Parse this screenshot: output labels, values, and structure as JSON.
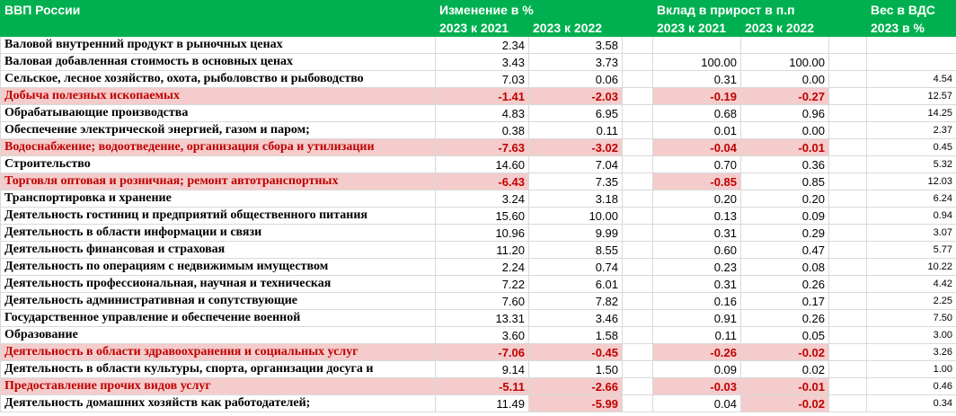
{
  "header": {
    "title": "ВВП России",
    "group_change": "Изменение в %",
    "group_contrib": "Вклад в прирост в п.п",
    "group_weight": "Вес в ВДС",
    "sub_2023_2021": "2023 к 2021",
    "sub_2023_2022": "2023 к 2022",
    "sub_2023_pct": "2023 в %"
  },
  "rows": [
    {
      "name": "Валовой внутренний продукт в рыночных ценах",
      "a": "2.34",
      "b": "3.58",
      "c": "",
      "d": "",
      "e": "",
      "neg": []
    },
    {
      "name": "Валовая добавленная стоимость  в основных ценах",
      "a": "3.43",
      "b": "3.73",
      "c": "100.00",
      "d": "100.00",
      "e": "",
      "neg": []
    },
    {
      "name": "Сельское, лесное хозяйство, охота, рыболовство и рыбоводство",
      "a": "7.03",
      "b": "0.06",
      "c": "0.31",
      "d": "0.00",
      "e": "4.54",
      "neg": []
    },
    {
      "name": "Добыча полезных ископаемых",
      "a": "-1.41",
      "b": "-2.03",
      "c": "-0.19",
      "d": "-0.27",
      "e": "12.57",
      "neg": [
        "name",
        "a",
        "b",
        "c",
        "d"
      ]
    },
    {
      "name": "Обрабатывающие производства",
      "a": "4.83",
      "b": "6.95",
      "c": "0.68",
      "d": "0.96",
      "e": "14.25",
      "neg": []
    },
    {
      "name": "Обеспечение электрической энергией, газом и паром;",
      "a": "0.38",
      "b": "0.11",
      "c": "0.01",
      "d": "0.00",
      "e": "2.37",
      "neg": []
    },
    {
      "name": "Водоснабжение; водоотведение, организация сбора и утилизации",
      "a": "-7.63",
      "b": "-3.02",
      "c": "-0.04",
      "d": "-0.01",
      "e": "0.45",
      "neg": [
        "name",
        "a",
        "b",
        "c",
        "d"
      ]
    },
    {
      "name": "Строительство",
      "a": "14.60",
      "b": "7.04",
      "c": "0.70",
      "d": "0.36",
      "e": "5.32",
      "neg": []
    },
    {
      "name": "Торговля оптовая и розничная; ремонт автотранспортных",
      "a": "-6.43",
      "b": "7.35",
      "c": "-0.85",
      "d": "0.85",
      "e": "12.03",
      "neg": [
        "name",
        "a",
        "c"
      ]
    },
    {
      "name": "Транспортировка и хранение",
      "a": "3.24",
      "b": "3.18",
      "c": "0.20",
      "d": "0.20",
      "e": "6.24",
      "neg": []
    },
    {
      "name": "Деятельность гостиниц и предприятий общественного питания",
      "a": "15.60",
      "b": "10.00",
      "c": "0.13",
      "d": "0.09",
      "e": "0.94",
      "neg": []
    },
    {
      "name": "Деятельность в области информации и связи",
      "a": "10.96",
      "b": "9.99",
      "c": "0.31",
      "d": "0.29",
      "e": "3.07",
      "neg": []
    },
    {
      "name": "Деятельность финансовая и страховая",
      "a": "11.20",
      "b": "8.55",
      "c": "0.60",
      "d": "0.47",
      "e": "5.77",
      "neg": []
    },
    {
      "name": "Деятельность по операциям с недвижимым имуществом",
      "a": "2.24",
      "b": "0.74",
      "c": "0.23",
      "d": "0.08",
      "e": "10.22",
      "neg": []
    },
    {
      "name": "Деятельность профессиональная, научная и техническая",
      "a": "7.22",
      "b": "6.01",
      "c": "0.31",
      "d": "0.26",
      "e": "4.42",
      "neg": []
    },
    {
      "name": "Деятельность административная и сопутствующие",
      "a": "7.60",
      "b": "7.82",
      "c": "0.16",
      "d": "0.17",
      "e": "2.25",
      "neg": []
    },
    {
      "name": "Государственное управление и обеспечение военной",
      "a": "13.31",
      "b": "3.46",
      "c": "0.91",
      "d": "0.26",
      "e": "7.50",
      "neg": []
    },
    {
      "name": "Образование",
      "a": "3.60",
      "b": "1.58",
      "c": "0.11",
      "d": "0.05",
      "e": "3.00",
      "neg": []
    },
    {
      "name": "Деятельность в области здравоохранения и социальных услуг",
      "a": "-7.06",
      "b": "-0.45",
      "c": "-0.26",
      "d": "-0.02",
      "e": "3.26",
      "neg": [
        "name",
        "a",
        "b",
        "c",
        "d"
      ]
    },
    {
      "name": "Деятельность в области культуры, спорта, организации досуга и",
      "a": "9.14",
      "b": "1.50",
      "c": "0.09",
      "d": "0.02",
      "e": "1.00",
      "neg": []
    },
    {
      "name": "Предоставление прочих видов услуг",
      "a": "-5.11",
      "b": "-2.66",
      "c": "-0.03",
      "d": "-0.01",
      "e": "0.46",
      "neg": [
        "name",
        "a",
        "b",
        "c",
        "d"
      ]
    },
    {
      "name": "Деятельность домашних хозяйств как работодателей;",
      "a": "11.49",
      "b": "-5.99",
      "c": "0.04",
      "d": "-0.02",
      "e": "0.34",
      "neg": [
        "b",
        "d"
      ]
    }
  ],
  "colors": {
    "header_bg": "#00b050",
    "header_fg": "#ffffff",
    "negative_bg": "#f4cccc",
    "negative_fg": "#c00000"
  }
}
